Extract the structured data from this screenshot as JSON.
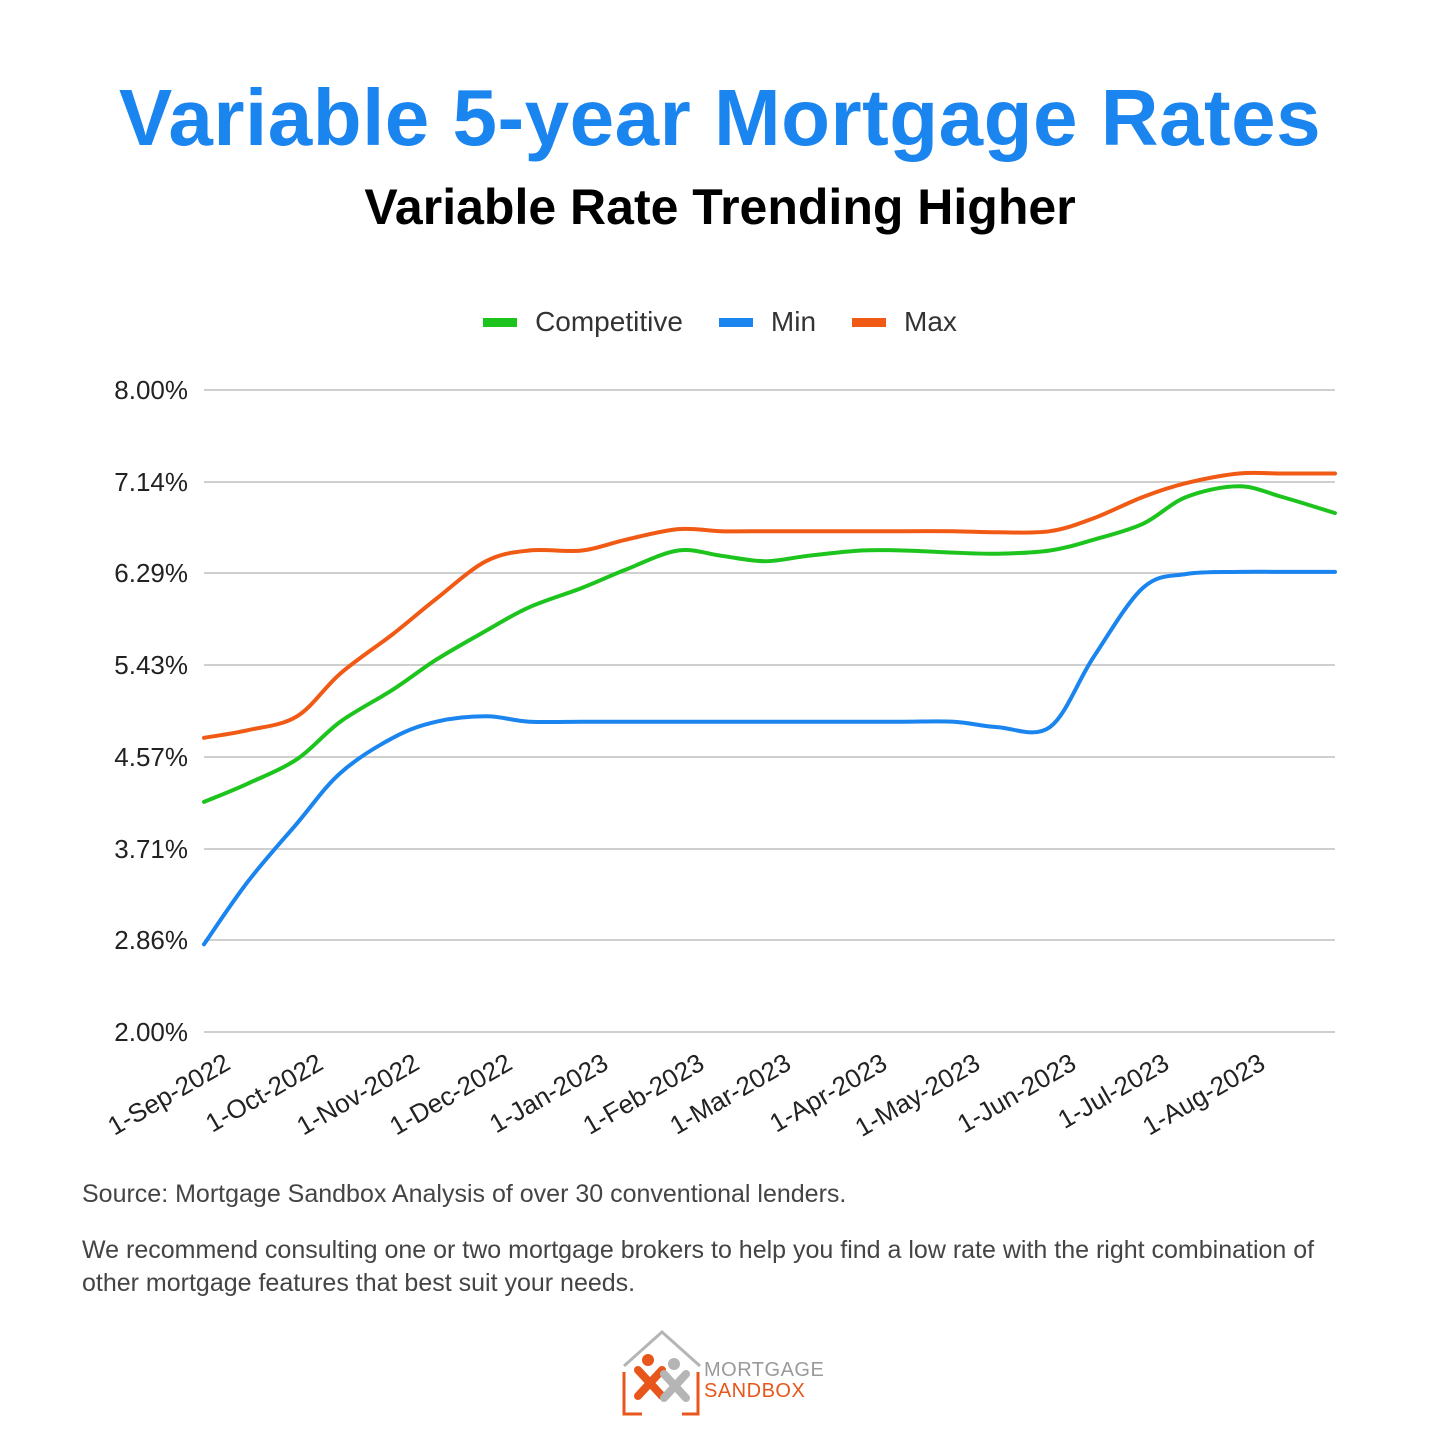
{
  "header": {
    "title": "Variable 5-year Mortgage Rates",
    "subtitle": "Variable Rate Trending Higher"
  },
  "colors": {
    "title": "#1a84ef",
    "competitive": "#1ec41e",
    "min": "#1a84ef",
    "max": "#f05a14",
    "grid": "#cfcfcf"
  },
  "chart_data": {
    "type": "line",
    "title": "",
    "xlabel": "",
    "ylabel": "",
    "legend_position": "top-center",
    "grid": true,
    "ylim": [
      2.0,
      8.0
    ],
    "y_ticks": [
      "8.00%",
      "7.14%",
      "6.29%",
      "5.43%",
      "4.57%",
      "3.71%",
      "2.86%",
      "2.00%"
    ],
    "y_tick_values": [
      8.0,
      7.14,
      6.29,
      5.43,
      4.57,
      3.71,
      2.86,
      2.0
    ],
    "x_ticks": [
      "1-Sep-2022",
      "1-Oct-2022",
      "1-Nov-2022",
      "1-Dec-2022",
      "1-Jan-2023",
      "1-Feb-2023",
      "1-Mar-2023",
      "1-Apr-2023",
      "1-May-2023",
      "1-Jun-2023",
      "1-Jul-2023",
      "1-Aug-2023"
    ],
    "x": [
      "2022-09-01",
      "2022-09-15",
      "2022-10-01",
      "2022-10-15",
      "2022-11-01",
      "2022-11-15",
      "2022-12-01",
      "2022-12-15",
      "2023-01-01",
      "2023-01-15",
      "2023-02-01",
      "2023-02-15",
      "2023-03-01",
      "2023-03-15",
      "2023-04-01",
      "2023-04-15",
      "2023-05-01",
      "2023-05-15",
      "2023-06-01",
      "2023-06-15",
      "2023-07-01",
      "2023-07-15",
      "2023-08-01",
      "2023-08-15",
      "2023-09-01"
    ],
    "series": [
      {
        "name": "Competitive",
        "color": "#1ec41e",
        "values": [
          4.15,
          4.32,
          4.55,
          4.9,
          5.2,
          5.48,
          5.75,
          5.97,
          6.15,
          6.32,
          6.5,
          6.45,
          6.4,
          6.45,
          6.5,
          6.5,
          6.48,
          6.47,
          6.5,
          6.6,
          6.75,
          7.0,
          7.1,
          7.0,
          6.85
        ]
      },
      {
        "name": "Min",
        "color": "#1a84ef",
        "values": [
          2.82,
          3.4,
          3.95,
          4.42,
          4.75,
          4.9,
          4.95,
          4.9,
          4.9,
          4.9,
          4.9,
          4.9,
          4.9,
          4.9,
          4.9,
          4.9,
          4.9,
          4.85,
          4.85,
          5.5,
          6.15,
          6.28,
          6.3,
          6.3,
          6.3
        ]
      },
      {
        "name": "Max",
        "color": "#f05a14",
        "values": [
          4.75,
          4.82,
          4.95,
          5.35,
          5.72,
          6.05,
          6.4,
          6.5,
          6.5,
          6.6,
          6.7,
          6.68,
          6.68,
          6.68,
          6.68,
          6.68,
          6.68,
          6.67,
          6.68,
          6.8,
          7.0,
          7.13,
          7.22,
          7.22,
          7.22
        ]
      }
    ]
  },
  "footer": {
    "source": "Source: Mortgage Sandbox Analysis of over 30 conventional lenders.",
    "note": "We recommend consulting one or two mortgage brokers to help you find a low rate with the right combination of other mortgage features that best suit your needs."
  },
  "logo": {
    "line1": "MORTGAGE",
    "line2": "SANDBOX"
  }
}
